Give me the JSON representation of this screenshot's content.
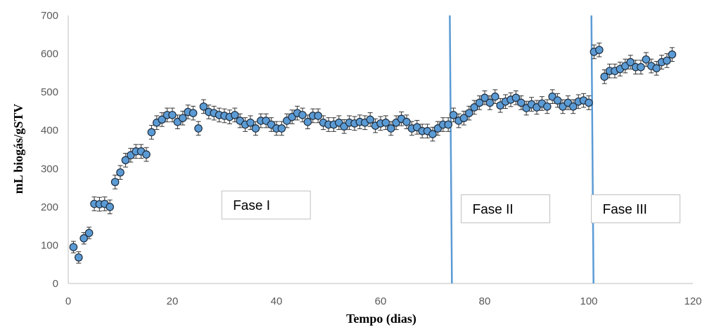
{
  "chart_data": {
    "type": "scatter",
    "xlabel": "Tempo (dias)",
    "ylabel": "mL biogás/gSTV",
    "xlim": [
      0,
      120
    ],
    "ylim": [
      0,
      700
    ],
    "xticks": [
      0,
      20,
      40,
      60,
      80,
      100,
      120
    ],
    "yticks": [
      0,
      100,
      200,
      300,
      400,
      500,
      600,
      700
    ],
    "grid": false,
    "marker_color": "#5b9bd5",
    "marker_edge_color": "#1f2d3d",
    "phase_line_color": "#5b9bd5",
    "phase_boundaries": [
      73.5,
      100.7
    ],
    "phase_labels": [
      {
        "text": "Fase I",
        "x": 38,
        "y": 205
      },
      {
        "text": "Fase II",
        "x": 84,
        "y": 195
      },
      {
        "text": "Fase III",
        "x": 109,
        "y": 195
      }
    ],
    "points": [
      {
        "x": 1,
        "y": 95,
        "err": 15
      },
      {
        "x": 2,
        "y": 68,
        "err": 15
      },
      {
        "x": 3,
        "y": 118,
        "err": 15
      },
      {
        "x": 4,
        "y": 132,
        "err": 15
      },
      {
        "x": 5,
        "y": 208,
        "err": 18
      },
      {
        "x": 6,
        "y": 207,
        "err": 18
      },
      {
        "x": 7,
        "y": 208,
        "err": 18
      },
      {
        "x": 8,
        "y": 200,
        "err": 18
      },
      {
        "x": 9,
        "y": 265,
        "err": 18
      },
      {
        "x": 10,
        "y": 290,
        "err": 18
      },
      {
        "x": 11,
        "y": 322,
        "err": 18
      },
      {
        "x": 12,
        "y": 335,
        "err": 18
      },
      {
        "x": 13,
        "y": 345,
        "err": 18
      },
      {
        "x": 14,
        "y": 345,
        "err": 18
      },
      {
        "x": 15,
        "y": 337,
        "err": 18
      },
      {
        "x": 16,
        "y": 395,
        "err": 18
      },
      {
        "x": 17,
        "y": 420,
        "err": 18
      },
      {
        "x": 18,
        "y": 428,
        "err": 18
      },
      {
        "x": 19,
        "y": 440,
        "err": 18
      },
      {
        "x": 20,
        "y": 440,
        "err": 18
      },
      {
        "x": 21,
        "y": 422,
        "err": 18
      },
      {
        "x": 22,
        "y": 432,
        "err": 18
      },
      {
        "x": 23,
        "y": 448,
        "err": 18
      },
      {
        "x": 24,
        "y": 445,
        "err": 18
      },
      {
        "x": 25,
        "y": 405,
        "err": 18
      },
      {
        "x": 26,
        "y": 462,
        "err": 18
      },
      {
        "x": 27,
        "y": 448,
        "err": 18
      },
      {
        "x": 28,
        "y": 445,
        "err": 18
      },
      {
        "x": 29,
        "y": 440,
        "err": 18
      },
      {
        "x": 30,
        "y": 438,
        "err": 18
      },
      {
        "x": 31,
        "y": 435,
        "err": 18
      },
      {
        "x": 32,
        "y": 440,
        "err": 18
      },
      {
        "x": 33,
        "y": 425,
        "err": 18
      },
      {
        "x": 34,
        "y": 415,
        "err": 18
      },
      {
        "x": 35,
        "y": 420,
        "err": 18
      },
      {
        "x": 36,
        "y": 405,
        "err": 18
      },
      {
        "x": 37,
        "y": 425,
        "err": 18
      },
      {
        "x": 38,
        "y": 425,
        "err": 18
      },
      {
        "x": 39,
        "y": 415,
        "err": 18
      },
      {
        "x": 40,
        "y": 405,
        "err": 18
      },
      {
        "x": 41,
        "y": 405,
        "err": 18
      },
      {
        "x": 42,
        "y": 425,
        "err": 18
      },
      {
        "x": 43,
        "y": 435,
        "err": 18
      },
      {
        "x": 44,
        "y": 445,
        "err": 18
      },
      {
        "x": 45,
        "y": 440,
        "err": 18
      },
      {
        "x": 46,
        "y": 422,
        "err": 18
      },
      {
        "x": 47,
        "y": 438,
        "err": 18
      },
      {
        "x": 48,
        "y": 438,
        "err": 18
      },
      {
        "x": 49,
        "y": 420,
        "err": 18
      },
      {
        "x": 50,
        "y": 415,
        "err": 18
      },
      {
        "x": 51,
        "y": 415,
        "err": 18
      },
      {
        "x": 52,
        "y": 420,
        "err": 18
      },
      {
        "x": 53,
        "y": 410,
        "err": 18
      },
      {
        "x": 54,
        "y": 420,
        "err": 18
      },
      {
        "x": 55,
        "y": 418,
        "err": 18
      },
      {
        "x": 56,
        "y": 422,
        "err": 18
      },
      {
        "x": 57,
        "y": 420,
        "err": 18
      },
      {
        "x": 58,
        "y": 428,
        "err": 18
      },
      {
        "x": 59,
        "y": 412,
        "err": 18
      },
      {
        "x": 60,
        "y": 418,
        "err": 18
      },
      {
        "x": 61,
        "y": 420,
        "err": 18
      },
      {
        "x": 62,
        "y": 405,
        "err": 18
      },
      {
        "x": 63,
        "y": 420,
        "err": 18
      },
      {
        "x": 64,
        "y": 430,
        "err": 18
      },
      {
        "x": 65,
        "y": 422,
        "err": 18
      },
      {
        "x": 66,
        "y": 405,
        "err": 18
      },
      {
        "x": 67,
        "y": 408,
        "err": 18
      },
      {
        "x": 68,
        "y": 398,
        "err": 18
      },
      {
        "x": 69,
        "y": 398,
        "err": 18
      },
      {
        "x": 70,
        "y": 390,
        "err": 18
      },
      {
        "x": 71,
        "y": 405,
        "err": 18
      },
      {
        "x": 72,
        "y": 415,
        "err": 18
      },
      {
        "x": 73,
        "y": 415,
        "err": 18
      },
      {
        "x": 74,
        "y": 440,
        "err": 18
      },
      {
        "x": 75,
        "y": 425,
        "err": 18
      },
      {
        "x": 76,
        "y": 432,
        "err": 18
      },
      {
        "x": 77,
        "y": 445,
        "err": 18
      },
      {
        "x": 78,
        "y": 460,
        "err": 18
      },
      {
        "x": 79,
        "y": 472,
        "err": 18
      },
      {
        "x": 80,
        "y": 485,
        "err": 18
      },
      {
        "x": 81,
        "y": 472,
        "err": 18
      },
      {
        "x": 82,
        "y": 488,
        "err": 18
      },
      {
        "x": 83,
        "y": 465,
        "err": 18
      },
      {
        "x": 84,
        "y": 475,
        "err": 18
      },
      {
        "x": 85,
        "y": 480,
        "err": 18
      },
      {
        "x": 86,
        "y": 485,
        "err": 18
      },
      {
        "x": 87,
        "y": 472,
        "err": 18
      },
      {
        "x": 88,
        "y": 458,
        "err": 18
      },
      {
        "x": 89,
        "y": 468,
        "err": 18
      },
      {
        "x": 90,
        "y": 460,
        "err": 18
      },
      {
        "x": 91,
        "y": 470,
        "err": 18
      },
      {
        "x": 92,
        "y": 462,
        "err": 18
      },
      {
        "x": 93,
        "y": 488,
        "err": 18
      },
      {
        "x": 94,
        "y": 478,
        "err": 18
      },
      {
        "x": 95,
        "y": 462,
        "err": 18
      },
      {
        "x": 96,
        "y": 472,
        "err": 18
      },
      {
        "x": 97,
        "y": 462,
        "err": 18
      },
      {
        "x": 98,
        "y": 475,
        "err": 18
      },
      {
        "x": 99,
        "y": 478,
        "err": 18
      },
      {
        "x": 100,
        "y": 472,
        "err": 18
      },
      {
        "x": 101,
        "y": 605,
        "err": 18
      },
      {
        "x": 102,
        "y": 610,
        "err": 18
      },
      {
        "x": 103,
        "y": 540,
        "err": 18
      },
      {
        "x": 104,
        "y": 555,
        "err": 18
      },
      {
        "x": 105,
        "y": 555,
        "err": 18
      },
      {
        "x": 106,
        "y": 560,
        "err": 18
      },
      {
        "x": 107,
        "y": 568,
        "err": 18
      },
      {
        "x": 108,
        "y": 578,
        "err": 18
      },
      {
        "x": 109,
        "y": 565,
        "err": 18
      },
      {
        "x": 110,
        "y": 565,
        "err": 18
      },
      {
        "x": 111,
        "y": 585,
        "err": 18
      },
      {
        "x": 112,
        "y": 568,
        "err": 18
      },
      {
        "x": 113,
        "y": 562,
        "err": 18
      },
      {
        "x": 114,
        "y": 578,
        "err": 18
      },
      {
        "x": 115,
        "y": 582,
        "err": 18
      },
      {
        "x": 116,
        "y": 598,
        "err": 18
      }
    ]
  }
}
